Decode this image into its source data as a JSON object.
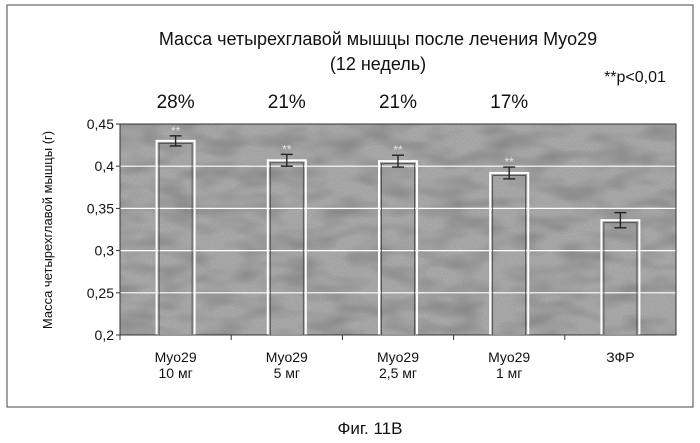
{
  "caption": "Фиг. 11В",
  "chart_data": {
    "type": "bar",
    "title": "Масса четырехглавой мышцы после лечения Myo29",
    "subtitle": "(12 недель)",
    "significance_note": "**p<0,01",
    "ylabel": "Масса четырехглавой мышцы (г)",
    "xlabel": "",
    "ylim": [
      0.2,
      0.45
    ],
    "yticks": [
      "0,2",
      "0,25",
      "0,3",
      "0,35",
      "0,4",
      "0,45"
    ],
    "grid": true,
    "categories": [
      {
        "line1": "Myo29",
        "line2": "10 мг"
      },
      {
        "line1": "Myo29",
        "line2": "5 мг"
      },
      {
        "line1": "Myo29",
        "line2": "2,5 мг"
      },
      {
        "line1": "Myo29",
        "line2": "1 мг"
      },
      {
        "line1": "ЗФР",
        "line2": ""
      }
    ],
    "values": [
      0.43,
      0.407,
      0.406,
      0.392,
      0.336
    ],
    "errors": [
      0.006,
      0.007,
      0.007,
      0.007,
      0.009
    ],
    "percent_labels": [
      "28%",
      "21%",
      "21%",
      "17%",
      ""
    ],
    "bar_marks": [
      "**",
      "**",
      "**",
      "**",
      ""
    ]
  }
}
